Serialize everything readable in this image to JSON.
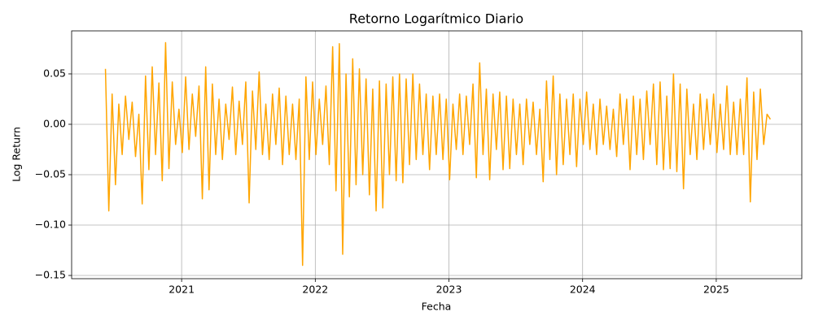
{
  "chart_data": {
    "type": "line",
    "title": "Retorno Logarítmico Diario",
    "xlabel": "Fecha",
    "ylabel": "Log Return",
    "color": "#ffa500",
    "grid": true,
    "xlim": [
      2020.177,
      2025.64
    ],
    "xticks": [
      2021,
      2022,
      2023,
      2024,
      2025
    ],
    "ylim": [
      -0.1532,
      0.0927
    ],
    "yticks": [
      {
        "value": -0.15,
        "label": "−0.15"
      },
      {
        "value": -0.1,
        "label": "−0.10"
      },
      {
        "value": -0.05,
        "label": "−0.05"
      },
      {
        "value": 0,
        "label": "0.00"
      },
      {
        "value": 0.05,
        "label": "0.05"
      }
    ],
    "x": [
      2020.43,
      2020.455,
      2020.48,
      2020.505,
      2020.53,
      2020.555,
      2020.58,
      2020.605,
      2020.63,
      2020.655,
      2020.68,
      2020.705,
      2020.73,
      2020.755,
      2020.78,
      2020.805,
      2020.83,
      2020.855,
      2020.88,
      2020.905,
      2020.93,
      2020.955,
      2020.98,
      2021.005,
      2021.03,
      2021.055,
      2021.08,
      2021.105,
      2021.13,
      2021.155,
      2021.18,
      2021.205,
      2021.23,
      2021.255,
      2021.28,
      2021.305,
      2021.33,
      2021.355,
      2021.38,
      2021.405,
      2021.43,
      2021.455,
      2021.48,
      2021.505,
      2021.53,
      2021.555,
      2021.58,
      2021.605,
      2021.63,
      2021.655,
      2021.68,
      2021.705,
      2021.73,
      2021.755,
      2021.78,
      2021.805,
      2021.83,
      2021.855,
      2021.88,
      2021.905,
      2021.93,
      2021.955,
      2021.98,
      2022.005,
      2022.03,
      2022.055,
      2022.08,
      2022.105,
      2022.13,
      2022.155,
      2022.18,
      2022.205,
      2022.23,
      2022.255,
      2022.28,
      2022.305,
      2022.33,
      2022.355,
      2022.38,
      2022.405,
      2022.43,
      2022.455,
      2022.48,
      2022.505,
      2022.53,
      2022.555,
      2022.58,
      2022.605,
      2022.63,
      2022.655,
      2022.68,
      2022.705,
      2022.73,
      2022.755,
      2022.78,
      2022.805,
      2022.83,
      2022.855,
      2022.88,
      2022.905,
      2022.93,
      2022.955,
      2022.98,
      2023.005,
      2023.03,
      2023.055,
      2023.08,
      2023.105,
      2023.13,
      2023.155,
      2023.18,
      2023.205,
      2023.23,
      2023.255,
      2023.28,
      2023.305,
      2023.33,
      2023.355,
      2023.38,
      2023.405,
      2023.43,
      2023.455,
      2023.48,
      2023.505,
      2023.53,
      2023.555,
      2023.58,
      2023.605,
      2023.63,
      2023.655,
      2023.68,
      2023.705,
      2023.73,
      2023.755,
      2023.78,
      2023.805,
      2023.83,
      2023.855,
      2023.88,
      2023.905,
      2023.93,
      2023.955,
      2023.98,
      2024.005,
      2024.03,
      2024.055,
      2024.08,
      2024.105,
      2024.13,
      2024.155,
      2024.18,
      2024.205,
      2024.23,
      2024.255,
      2024.28,
      2024.305,
      2024.33,
      2024.355,
      2024.38,
      2024.405,
      2024.43,
      2024.455,
      2024.48,
      2024.505,
      2024.53,
      2024.555,
      2024.58,
      2024.605,
      2024.63,
      2024.655,
      2024.68,
      2024.705,
      2024.73,
      2024.755,
      2024.78,
      2024.805,
      2024.83,
      2024.855,
      2024.88,
      2024.905,
      2024.93,
      2024.955,
      2024.98,
      2025.005,
      2025.03,
      2025.055,
      2025.08,
      2025.105,
      2025.13,
      2025.155,
      2025.18,
      2025.205,
      2025.23,
      2025.255,
      2025.28,
      2025.305,
      2025.33,
      2025.355,
      2025.38,
      2025.405
    ],
    "values": [
      0.055,
      -0.086,
      0.03,
      -0.06,
      0.02,
      -0.03,
      0.028,
      -0.015,
      0.022,
      -0.032,
      0.01,
      -0.079,
      0.048,
      -0.045,
      0.057,
      -0.03,
      0.041,
      -0.056,
      0.081,
      -0.044,
      0.042,
      -0.02,
      0.015,
      -0.028,
      0.047,
      -0.025,
      0.03,
      -0.012,
      0.038,
      -0.074,
      0.057,
      -0.065,
      0.04,
      -0.03,
      0.025,
      -0.035,
      0.02,
      -0.015,
      0.037,
      -0.03,
      0.023,
      -0.02,
      0.042,
      -0.078,
      0.033,
      -0.025,
      0.052,
      -0.03,
      0.02,
      -0.035,
      0.03,
      -0.02,
      0.036,
      -0.04,
      0.028,
      -0.03,
      0.02,
      -0.035,
      0.025,
      -0.14,
      0.047,
      -0.035,
      0.042,
      -0.03,
      0.025,
      -0.02,
      0.038,
      -0.04,
      0.077,
      -0.066,
      0.08,
      -0.129,
      0.05,
      -0.072,
      0.065,
      -0.06,
      0.055,
      -0.05,
      0.045,
      -0.07,
      0.035,
      -0.086,
      0.043,
      -0.083,
      0.04,
      -0.05,
      0.047,
      -0.056,
      0.05,
      -0.058,
      0.045,
      -0.04,
      0.05,
      -0.035,
      0.04,
      -0.03,
      0.03,
      -0.045,
      0.028,
      -0.03,
      0.03,
      -0.035,
      0.025,
      -0.055,
      0.02,
      -0.025,
      0.03,
      -0.03,
      0.028,
      -0.02,
      0.04,
      -0.053,
      0.061,
      -0.03,
      0.035,
      -0.055,
      0.03,
      -0.025,
      0.032,
      -0.045,
      0.028,
      -0.044,
      0.025,
      -0.03,
      0.02,
      -0.04,
      0.025,
      -0.02,
      0.022,
      -0.03,
      0.015,
      -0.057,
      0.043,
      -0.035,
      0.048,
      -0.05,
      0.03,
      -0.04,
      0.025,
      -0.03,
      0.03,
      -0.042,
      0.025,
      -0.02,
      0.032,
      -0.025,
      0.02,
      -0.03,
      0.025,
      -0.02,
      0.018,
      -0.025,
      0.015,
      -0.032,
      0.03,
      -0.02,
      0.025,
      -0.045,
      0.028,
      -0.03,
      0.025,
      -0.035,
      0.033,
      -0.02,
      0.04,
      -0.04,
      0.042,
      -0.045,
      0.028,
      -0.044,
      0.05,
      -0.047,
      0.04,
      -0.064,
      0.035,
      -0.03,
      0.02,
      -0.035,
      0.03,
      -0.025,
      0.025,
      -0.02,
      0.03,
      -0.028,
      0.02,
      -0.025,
      0.038,
      -0.03,
      0.022,
      -0.03,
      0.025,
      -0.03,
      0.046,
      -0.077,
      0.032,
      -0.035,
      0.035,
      -0.02,
      0.01,
      0.005
    ]
  }
}
